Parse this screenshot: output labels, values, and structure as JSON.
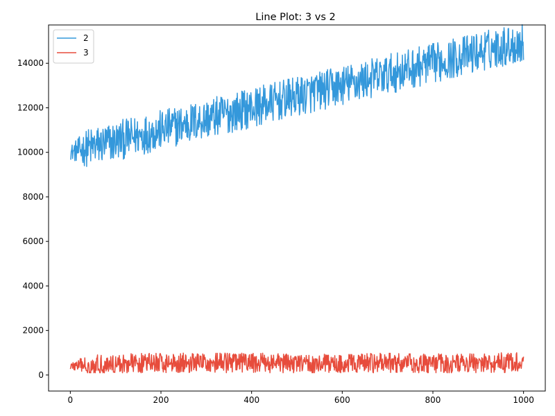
{
  "chart_data": {
    "type": "line",
    "title": "Line Plot: 3 vs 2",
    "xlabel": "",
    "ylabel": "",
    "xlim": [
      -48,
      1048
    ],
    "ylim": [
      -720,
      15720
    ],
    "x_ticks": [
      0,
      200,
      400,
      600,
      800,
      1000
    ],
    "y_ticks": [
      0,
      2000,
      4000,
      6000,
      8000,
      10000,
      12000,
      14000
    ],
    "grid": false,
    "legend": "upper left",
    "series": [
      {
        "name": "2",
        "color": "#3498db",
        "x": [
          0,
          50,
          100,
          150,
          200,
          250,
          300,
          350,
          400,
          450,
          500,
          550,
          600,
          650,
          700,
          750,
          800,
          850,
          900,
          950,
          1000
        ],
        "y": [
          10000,
          10250,
          10500,
          10750,
          11000,
          11250,
          11500,
          11750,
          12000,
          12250,
          12500,
          12750,
          13000,
          13250,
          13500,
          13750,
          14000,
          14250,
          14500,
          14750,
          14900
        ],
        "noise_amplitude": 900,
        "point_count": 1000
      },
      {
        "name": "3",
        "color": "#e74c3c",
        "x": [
          0,
          100,
          200,
          300,
          400,
          500,
          600,
          700,
          800,
          900,
          1000
        ],
        "y": [
          400,
          500,
          550,
          550,
          550,
          500,
          500,
          550,
          500,
          550,
          550
        ],
        "noise_amplitude": 450,
        "point_count": 1000
      }
    ]
  }
}
